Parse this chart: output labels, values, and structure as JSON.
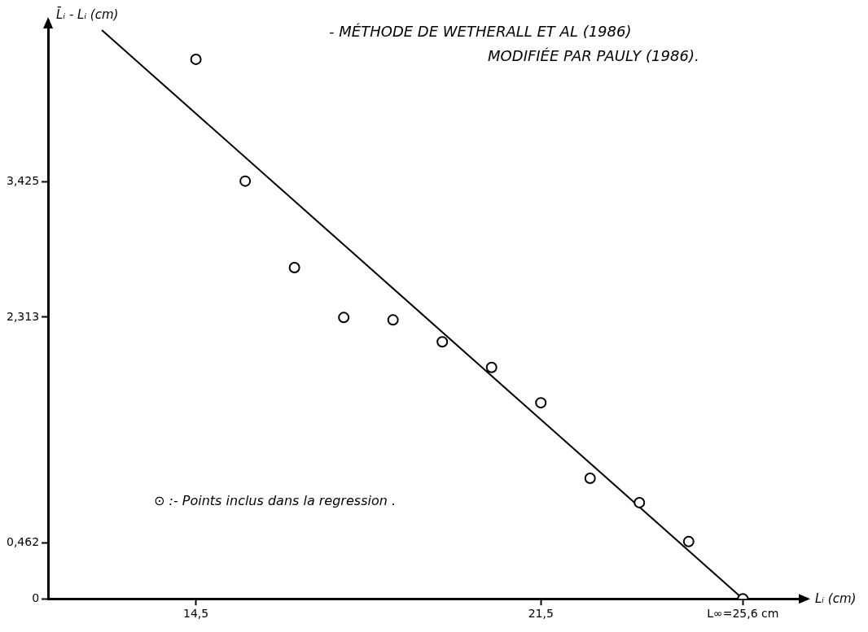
{
  "chart_data": {
    "type": "scatter",
    "title": "- MÉTHODE DE WETHERALL ET AL (1986)",
    "subtitle": "MODIFIÉE PAR PAULY (1986).",
    "xlabel": "Lᵢ (cm)",
    "ylabel": "L̄ᵢ - Lᵢ (cm)",
    "xlim": [
      11.5,
      26.9
    ],
    "ylim": [
      0,
      4.75
    ],
    "xticks": [
      {
        "value": 14.5,
        "label": "14,5"
      },
      {
        "value": 21.5,
        "label": "21,5"
      },
      {
        "value": 25.6,
        "label": "L∞=25,6 cm"
      }
    ],
    "yticks": [
      0,
      {
        "value": 0.462,
        "label": "0,462"
      },
      {
        "value": 2.313,
        "label": "2,313"
      },
      {
        "value": 3.425,
        "label": "3,425"
      }
    ],
    "series": [
      {
        "color": "#000000",
        "marker": "circle",
        "x": [
          14.5,
          15.5,
          16.5,
          17.5,
          18.5,
          19.5,
          20.5,
          21.5,
          22.5,
          23.5,
          24.5,
          25.6
        ],
        "values": [
          4.43,
          3.43,
          2.72,
          2.31,
          2.29,
          2.11,
          1.9,
          1.61,
          0.99,
          0.79,
          0.47,
          0
        ]
      },
      {
        "type": "line",
        "color": "#000000",
        "marker": "none",
        "line_style": "solid",
        "x": [
          12.59,
          25.6
        ],
        "values": [
          4.67,
          0
        ]
      }
    ],
    "annotations": [
      "⊙ :- Points inclus dans la regression ."
    ],
    "grid": false
  }
}
